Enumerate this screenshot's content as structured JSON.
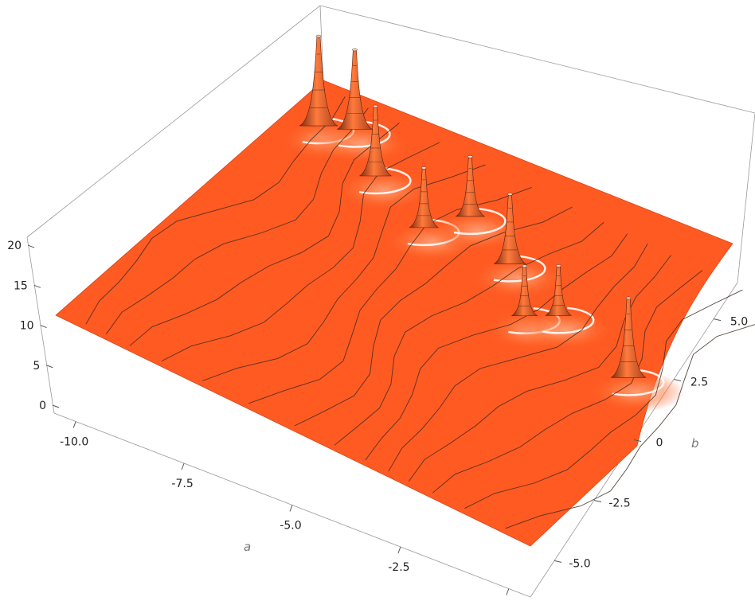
{
  "chart_data": {
    "type": "surface3d",
    "title": "",
    "xlabel": "a",
    "ylabel": "b",
    "zlabel": "",
    "x_ticks": [
      "-10.0",
      "-7.5",
      "-5.0",
      "-2.5",
      "0"
    ],
    "y_ticks": [
      "-5.0",
      "-2.5",
      "0",
      "2.5",
      "5.0"
    ],
    "z_ticks": [
      "0",
      "5",
      "10",
      "15",
      "20"
    ],
    "x_range": [
      -10.5,
      0.5
    ],
    "y_range": [
      -6.5,
      6.5
    ],
    "z_range": [
      0,
      22
    ],
    "base_level": 13,
    "peaks": [
      {
        "a": -9.8,
        "b": 4.8,
        "height": 22
      },
      {
        "a": -9.2,
        "b": 5.3,
        "height": 21
      },
      {
        "a": -8.1,
        "b": 4.0,
        "height": 20
      },
      {
        "a": -6.5,
        "b": 3.0,
        "height": 19
      },
      {
        "a": -6.0,
        "b": 4.2,
        "height": 19
      },
      {
        "a": -4.6,
        "b": 3.2,
        "height": 20
      },
      {
        "a": -3.5,
        "b": 1.6,
        "height": 18
      },
      {
        "a": -3.0,
        "b": 2.2,
        "height": 18
      },
      {
        "a": -0.9,
        "b": 1.2,
        "height": 21
      }
    ],
    "surface_color": "#ff5a22",
    "box": true,
    "grid": false,
    "legend": "none"
  }
}
